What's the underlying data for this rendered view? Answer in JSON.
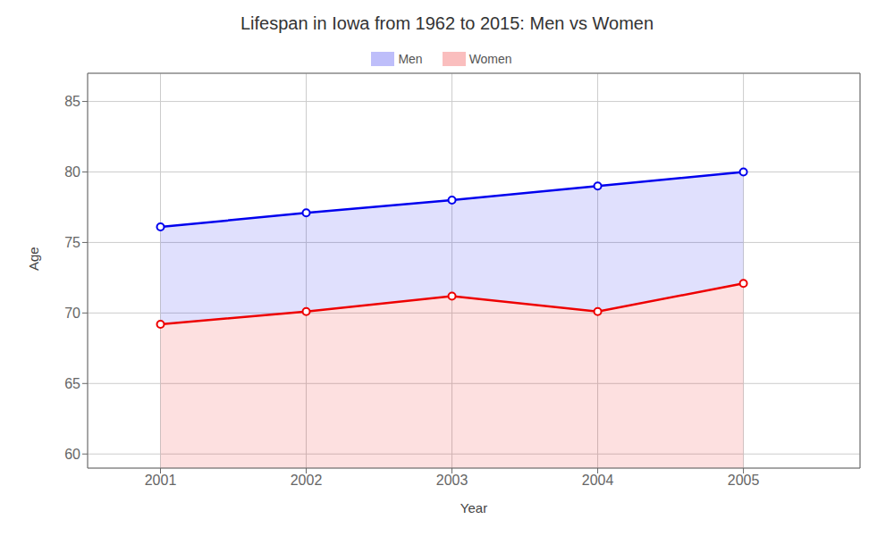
{
  "chart_data": {
    "type": "area",
    "title": "Lifespan in Iowa from 1962 to 2015: Men vs Women",
    "xlabel": "Year",
    "ylabel": "Age",
    "x": [
      2001,
      2002,
      2003,
      2004,
      2005
    ],
    "series": [
      {
        "name": "Men",
        "color": "#0000ee",
        "values": [
          76.1,
          77.1,
          78.0,
          79.0,
          80.0
        ]
      },
      {
        "name": "Women",
        "color": "#ee0000",
        "values": [
          69.2,
          70.1,
          71.2,
          70.1,
          72.1
        ]
      }
    ],
    "xlim": [
      2000.5,
      2005.8
    ],
    "xticks": [
      2001,
      2002,
      2003,
      2004,
      2005
    ],
    "ylim": [
      59,
      87
    ],
    "yticks": [
      60,
      65,
      70,
      75,
      80,
      85
    ],
    "grid": true,
    "legend": "top",
    "marker": "circle"
  }
}
